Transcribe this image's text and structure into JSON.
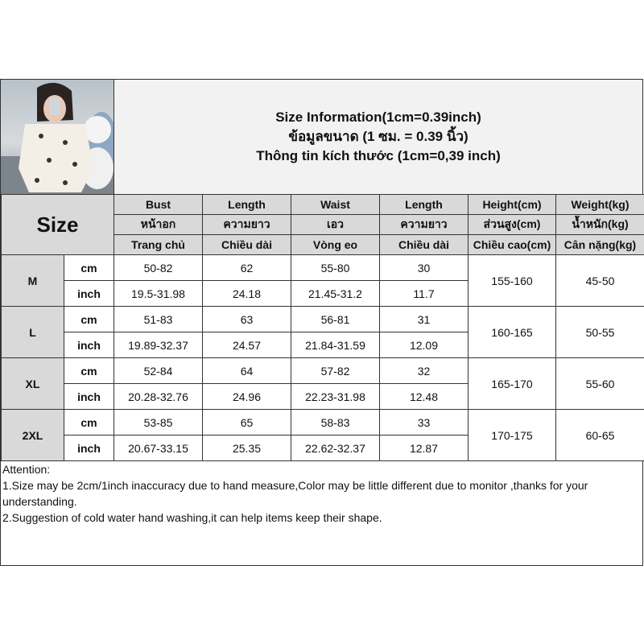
{
  "title": {
    "line1": "Size Information(1cm=0.39inch)",
    "line2": "ข้อมูลขนาด (1 ซม. = 0.39 นิ้ว)",
    "line3": "Thông tin kích thước (1cm=0,39 inch)"
  },
  "size_label": "Size",
  "headers": [
    [
      "Bust",
      "Length",
      "Waist",
      "Length",
      "Height(cm)",
      "Weight(kg)"
    ],
    [
      "หน้าอก",
      "ความยาว",
      "เอว",
      "ความยาว",
      "ส่วนสูง(cm)",
      "น้ำหนัก(kg)"
    ],
    [
      "Trang chủ",
      "Chiều dài",
      "Vòng eo",
      "Chiều dài",
      "Chiều cao(cm)",
      "Cân nặng(kg)"
    ]
  ],
  "rows": [
    {
      "size": "M",
      "cm": [
        "50-82",
        "62",
        "55-80",
        "30"
      ],
      "inch": [
        "19.5-31.98",
        "24.18",
        "21.45-31.2",
        "11.7"
      ],
      "height": "155-160",
      "weight": "45-50"
    },
    {
      "size": "L",
      "cm": [
        "51-83",
        "63",
        "56-81",
        "31"
      ],
      "inch": [
        "19.89-32.37",
        "24.57",
        "21.84-31.59",
        "12.09"
      ],
      "height": "160-165",
      "weight": "50-55"
    },
    {
      "size": "XL",
      "cm": [
        "52-84",
        "64",
        "57-82",
        "32"
      ],
      "inch": [
        "20.28-32.76",
        "24.96",
        "22.23-31.98",
        "12.48"
      ],
      "height": "165-170",
      "weight": "55-60"
    },
    {
      "size": "2XL",
      "cm": [
        "53-85",
        "65",
        "58-83",
        "33"
      ],
      "inch": [
        "20.67-33.15",
        "25.35",
        "22.62-32.37",
        "12.87"
      ],
      "height": "170-175",
      "weight": "60-65"
    }
  ],
  "units": {
    "cm": "cm",
    "inch": "inch"
  },
  "attention": {
    "heading": "Attention:",
    "note1": "1.Size may be 2cm/1inch inaccuracy due to hand measure,Color may be little different due to monitor ,thanks for your understanding.",
    "note2": "2.Suggestion of cold water hand washing,it can help items keep their shape."
  }
}
